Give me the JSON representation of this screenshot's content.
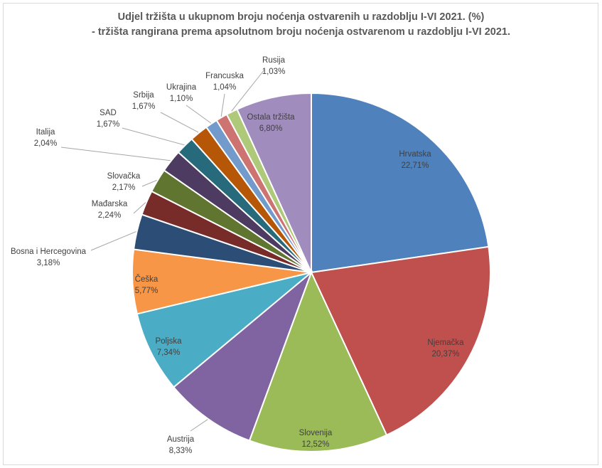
{
  "chart_data": {
    "type": "pie",
    "title": "Udjel tržišta u ukupnom broju noćenja ostvarenih u razdoblju I-VI 2021. (%)",
    "subtitle": "- tržišta rangirana prema apsolutnom broju noćenja ostvarenom u razdoblju I-VI 2021.",
    "slices": [
      {
        "label": "Hrvatska",
        "value": 22.71,
        "display": "22,71%",
        "color": "#4f81bd"
      },
      {
        "label": "Njemačka",
        "value": 20.37,
        "display": "20,37%",
        "color": "#c0504d"
      },
      {
        "label": "Slovenija",
        "value": 12.52,
        "display": "12,52%",
        "color": "#9bbb59"
      },
      {
        "label": "Austrija",
        "value": 8.33,
        "display": "8,33%",
        "color": "#8064a2"
      },
      {
        "label": "Poljska",
        "value": 7.34,
        "display": "7,34%",
        "color": "#4bacc6"
      },
      {
        "label": "Češka",
        "value": 5.77,
        "display": "5,77%",
        "color": "#f79646"
      },
      {
        "label": "Bosna i Hercegovina",
        "value": 3.18,
        "display": "3,18%",
        "color": "#2c4d75"
      },
      {
        "label": "Mađarska",
        "value": 2.24,
        "display": "2,24%",
        "color": "#772c2a"
      },
      {
        "label": "Slovačka",
        "value": 2.17,
        "display": "2,17%",
        "color": "#5f7530"
      },
      {
        "label": "Italija",
        "value": 2.04,
        "display": "2,04%",
        "color": "#4d3b62"
      },
      {
        "label": "SAD",
        "value": 1.67,
        "display": "1,67%",
        "color": "#276a7c"
      },
      {
        "label": "Srbija",
        "value": 1.67,
        "display": "1,67%",
        "color": "#b65708"
      },
      {
        "label": "Ukrajina",
        "value": 1.1,
        "display": "1,10%",
        "color": "#729aca"
      },
      {
        "label": "Francuska",
        "value": 1.04,
        "display": "1,04%",
        "color": "#cd7371"
      },
      {
        "label": "Rusija",
        "value": 1.03,
        "display": "1,03%",
        "color": "#afc97a"
      },
      {
        "label": "Ostala tržišta",
        "value": 6.8,
        "display": "6,80%",
        "color": "#a18cbe"
      }
    ]
  }
}
